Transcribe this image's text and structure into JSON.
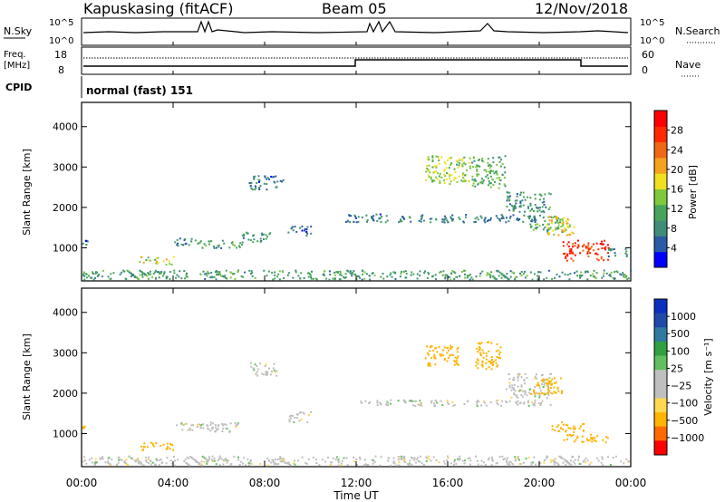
{
  "header": {
    "station": "Kapuskasing (fitACF)",
    "beam": "Beam 05",
    "date": "12/Nov/2018"
  },
  "aux_labels": {
    "nsky": "N.Sky",
    "nsearch": "N.Search",
    "freq_line1": "Freq.",
    "freq_line2": "[MHz]",
    "nave": "Nave",
    "cpid": "CPID",
    "cpid_value": "normal (fast) 151",
    "nsky_ticks": [
      "10^5",
      "10^0"
    ],
    "freq_ticks": [
      "18",
      "8"
    ],
    "nave_ticks": [
      "60",
      "0"
    ]
  },
  "colors": {
    "frame": "#000000",
    "power_scale": [
      "#0000ff",
      "#2a5ba6",
      "#3f8c7a",
      "#46a55a",
      "#7ec83c",
      "#f0e020",
      "#f5a21c",
      "#f06814",
      "#ff2a00",
      "#ff0000"
    ],
    "velocity_scale": [
      "#ff0000",
      "#ff6a00",
      "#ffb400",
      "#ffd850",
      "#bfbfbf",
      "#bfbfbf",
      "#60c060",
      "#30a040",
      "#2e7aa0",
      "#1f4aa8",
      "#0a30c0"
    ]
  },
  "chart_data": [
    {
      "type": "heatmap",
      "name": "power",
      "xlabel": "",
      "ylabel": "Slant Range [km]",
      "ylim": [
        180,
        4600
      ],
      "yticks": [
        1000,
        2000,
        3000,
        4000
      ],
      "xlim": [
        0,
        24
      ],
      "colorbar": {
        "label": "Power [dB]",
        "ticks": [
          4,
          8,
          12,
          16,
          20,
          24,
          28
        ],
        "range": [
          0,
          32
        ]
      },
      "regions": [
        {
          "t0": 0.0,
          "t1": 24.0,
          "r0": 230,
          "r1": 460,
          "value": 10
        },
        {
          "t0": 0.0,
          "t1": 0.25,
          "r0": 1080,
          "r1": 1200,
          "value": 6
        },
        {
          "t0": 2.5,
          "t1": 4.0,
          "r0": 600,
          "r1": 800,
          "value": 16
        },
        {
          "t0": 4.0,
          "t1": 5.0,
          "r0": 1050,
          "r1": 1250,
          "value": 8
        },
        {
          "t0": 5.0,
          "t1": 7.0,
          "r0": 1000,
          "r1": 1200,
          "value": 10
        },
        {
          "t0": 7.0,
          "t1": 8.3,
          "r0": 1150,
          "r1": 1400,
          "value": 9
        },
        {
          "t0": 7.3,
          "t1": 8.8,
          "r0": 2450,
          "r1": 2800,
          "value": 7
        },
        {
          "t0": 9.0,
          "t1": 10.0,
          "r0": 1300,
          "r1": 1550,
          "value": 6
        },
        {
          "t0": 11.5,
          "t1": 20.0,
          "r0": 1650,
          "r1": 1850,
          "value": 7
        },
        {
          "t0": 15.0,
          "t1": 17.0,
          "r0": 2600,
          "r1": 3300,
          "value": 15
        },
        {
          "t0": 17.0,
          "t1": 18.5,
          "r0": 2500,
          "r1": 3300,
          "value": 12
        },
        {
          "t0": 18.5,
          "t1": 20.5,
          "r0": 1900,
          "r1": 2400,
          "value": 9
        },
        {
          "t0": 19.5,
          "t1": 21.0,
          "r0": 1400,
          "r1": 1800,
          "value": 10
        },
        {
          "t0": 20.3,
          "t1": 21.5,
          "r0": 1300,
          "r1": 1800,
          "value": 18
        },
        {
          "t0": 21.0,
          "t1": 23.0,
          "r0": 700,
          "r1": 1200,
          "value": 27
        },
        {
          "t0": 23.0,
          "t1": 23.9,
          "r0": 800,
          "r1": 1000,
          "value": 8
        }
      ]
    },
    {
      "type": "heatmap",
      "name": "velocity",
      "xlabel": "Time UT",
      "ylabel": "Slant Range [km]",
      "ylim": [
        180,
        4600
      ],
      "yticks": [
        1000,
        2000,
        3000,
        4000
      ],
      "xlim": [
        0,
        24
      ],
      "xticks": [
        "00:00",
        "04:00",
        "08:00",
        "12:00",
        "16:00",
        "20:00",
        "00:00"
      ],
      "colorbar": {
        "label": "Velocity [m s⁻¹]",
        "ticks": [
          "1000",
          "500",
          "100",
          "25",
          "−25",
          "−100",
          "−500",
          "−1000"
        ]
      },
      "regions": [
        {
          "t0": 0.0,
          "t1": 24.0,
          "r0": 230,
          "r1": 460,
          "value": 0
        },
        {
          "t0": 0.0,
          "t1": 0.25,
          "r0": 1100,
          "r1": 1200,
          "value": -300
        },
        {
          "t0": 2.5,
          "t1": 4.0,
          "r0": 600,
          "r1": 800,
          "value": -400
        },
        {
          "t0": 4.0,
          "t1": 7.0,
          "r0": 1050,
          "r1": 1300,
          "value": 0
        },
        {
          "t0": 7.3,
          "t1": 8.5,
          "r0": 2450,
          "r1": 2800,
          "value": 0
        },
        {
          "t0": 9.0,
          "t1": 10.0,
          "r0": 1300,
          "r1": 1550,
          "value": 0
        },
        {
          "t0": 12.0,
          "t1": 20.5,
          "r0": 1700,
          "r1": 1850,
          "value": 0
        },
        {
          "t0": 15.0,
          "t1": 16.5,
          "r0": 2700,
          "r1": 3200,
          "value": -300
        },
        {
          "t0": 17.2,
          "t1": 18.3,
          "r0": 2600,
          "r1": 3300,
          "value": -300
        },
        {
          "t0": 18.5,
          "t1": 20.5,
          "r0": 1900,
          "r1": 2500,
          "value": 0
        },
        {
          "t0": 19.5,
          "t1": 21.0,
          "r0": 2000,
          "r1": 2400,
          "value": -200
        },
        {
          "t0": 20.5,
          "t1": 22.0,
          "r0": 1050,
          "r1": 1300,
          "value": -200
        },
        {
          "t0": 21.0,
          "t1": 23.0,
          "r0": 800,
          "r1": 1000,
          "value": -200
        }
      ]
    }
  ]
}
